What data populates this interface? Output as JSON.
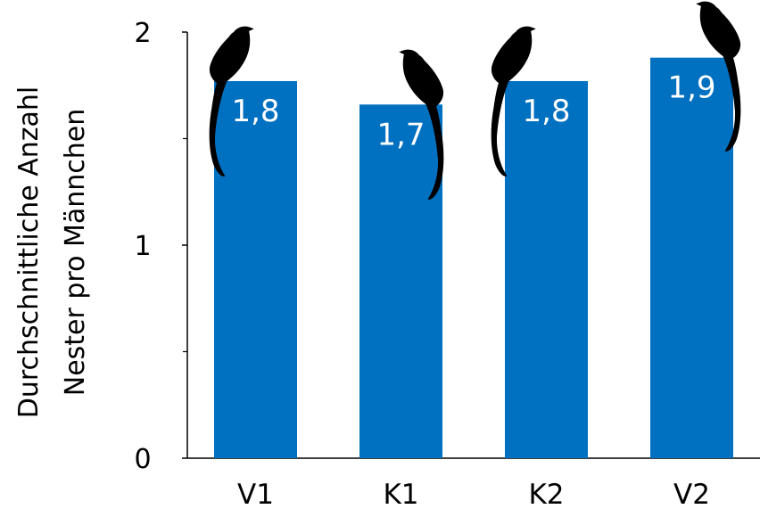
{
  "chart_data": {
    "type": "bar",
    "categories": [
      "V1",
      "K1",
      "K2",
      "V2"
    ],
    "values": [
      1.77,
      1.66,
      1.77,
      1.88
    ],
    "value_labels": [
      "1,8",
      "1,7",
      "1,8",
      "1,9"
    ],
    "title": "",
    "xlabel": "",
    "ylabel_lines": [
      "Durchschnittliche Anzahl",
      "Nester pro Männchen"
    ],
    "ylim": [
      0,
      2
    ],
    "yticks": [
      0,
      1,
      2
    ],
    "ytick_labels": [
      "0",
      "1",
      "2"
    ],
    "minor_ticks": [
      0.5,
      1.5
    ],
    "grid": false,
    "bar_color": "#0070c0",
    "label_color": "#ffffff",
    "decoration_icon": "long-tailed-bird-silhouette-icon"
  }
}
